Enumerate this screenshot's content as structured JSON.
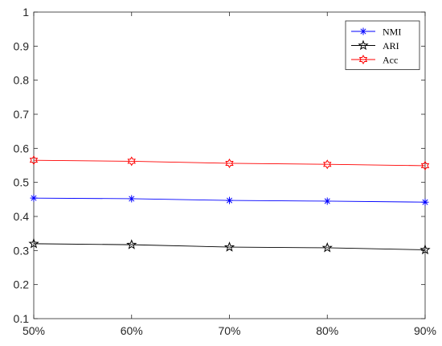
{
  "chart_data": {
    "type": "line",
    "title": "",
    "xlabel": "",
    "ylabel": "",
    "categories": [
      "50%",
      "60%",
      "70%",
      "80%",
      "90%"
    ],
    "ylim": [
      0.1,
      1
    ],
    "yticks": [
      "0.1",
      "0.2",
      "0.3",
      "0.4",
      "0.5",
      "0.6",
      "0.7",
      "0.8",
      "0.9",
      "1"
    ],
    "grid": false,
    "legend_position": "top-right",
    "series": [
      {
        "name": "NMI",
        "color": "#0000ff",
        "marker": "asterisk",
        "values": [
          0.454,
          0.452,
          0.447,
          0.445,
          0.442
        ]
      },
      {
        "name": "ARI",
        "color": "#000000",
        "marker": "star",
        "values": [
          0.32,
          0.317,
          0.31,
          0.308,
          0.302
        ]
      },
      {
        "name": "Acc",
        "color": "#ff0000",
        "marker": "hexagram",
        "values": [
          0.565,
          0.562,
          0.556,
          0.553,
          0.549
        ]
      }
    ]
  }
}
